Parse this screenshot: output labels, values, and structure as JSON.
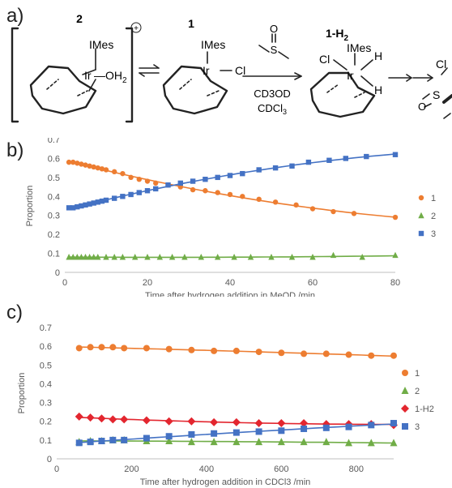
{
  "scheme": {
    "panel_label": "a)",
    "compound_2_label": "2",
    "compound_1_label": "1",
    "compound_1H2_label": "1-H",
    "compound_1H2_sub": "2",
    "charge": "+",
    "imes": "IMes",
    "ir": "Ir",
    "oh2": "—OH",
    "oh2_sub": "2",
    "cl": "Cl",
    "h": "H",
    "sulfoxide_o": "O",
    "sulfoxide_s": "S",
    "solvent_1": "CD3OD",
    "solvent_2_main": "CDCl",
    "solvent_2_sub": "3"
  },
  "chart_data": [
    {
      "panel_label": "b)",
      "type": "scatter",
      "xlabel": "Time after hydrogen addition in MeOD /min",
      "ylabel": "Proportion",
      "xlim": [
        0,
        80
      ],
      "ylim": [
        0,
        0.7
      ],
      "xticks": [
        0,
        20,
        40,
        60,
        80
      ],
      "yticks": [
        0,
        0.1,
        0.2,
        0.3,
        0.4,
        0.5,
        0.6,
        0.7
      ],
      "ytick_labels": [
        "0",
        "0.1",
        "0.2",
        "0.3",
        "0.4",
        "0.5",
        "0.6",
        "0.7"
      ],
      "grid": false,
      "legend_position": "right",
      "trendlines": true,
      "series": [
        {
          "name": "1",
          "color": "#ED7D31",
          "marker": "circle",
          "x": [
            1,
            2,
            3,
            4,
            5,
            6,
            7,
            8,
            9,
            10,
            12,
            14,
            16,
            18,
            20,
            22,
            25,
            28,
            31,
            34,
            37,
            40,
            43,
            47,
            51,
            56,
            60,
            65,
            70,
            80
          ],
          "y": [
            0.58,
            0.58,
            0.575,
            0.57,
            0.565,
            0.56,
            0.555,
            0.55,
            0.545,
            0.54,
            0.53,
            0.52,
            0.5,
            0.49,
            0.48,
            0.47,
            0.46,
            0.45,
            0.435,
            0.43,
            0.42,
            0.41,
            0.4,
            0.385,
            0.37,
            0.355,
            0.335,
            0.32,
            0.31,
            0.29
          ]
        },
        {
          "name": "2",
          "color": "#70AD47",
          "marker": "triangle",
          "x": [
            1,
            2,
            3,
            4,
            5,
            6,
            7,
            8,
            10,
            12,
            14,
            17,
            20,
            23,
            26,
            29,
            33,
            37,
            41,
            45,
            50,
            55,
            60,
            65,
            72,
            80
          ],
          "y": [
            0.08,
            0.08,
            0.08,
            0.08,
            0.08,
            0.08,
            0.08,
            0.08,
            0.08,
            0.08,
            0.08,
            0.08,
            0.08,
            0.08,
            0.08,
            0.08,
            0.08,
            0.08,
            0.08,
            0.08,
            0.08,
            0.08,
            0.08,
            0.09,
            0.08,
            0.09
          ]
        },
        {
          "name": "3",
          "color": "#4472C4",
          "marker": "square",
          "x": [
            1,
            2,
            3,
            4,
            5,
            6,
            7,
            8,
            9,
            10,
            12,
            14,
            16,
            18,
            20,
            22,
            25,
            28,
            31,
            34,
            37,
            40,
            43,
            47,
            51,
            55,
            59,
            64,
            68,
            73,
            80
          ],
          "y": [
            0.34,
            0.34,
            0.345,
            0.35,
            0.355,
            0.36,
            0.365,
            0.37,
            0.375,
            0.38,
            0.39,
            0.4,
            0.41,
            0.42,
            0.43,
            0.44,
            0.46,
            0.47,
            0.48,
            0.49,
            0.5,
            0.51,
            0.52,
            0.54,
            0.55,
            0.56,
            0.58,
            0.59,
            0.6,
            0.61,
            0.62
          ]
        }
      ]
    },
    {
      "panel_label": "c)",
      "type": "scatter",
      "xlabel": "Time after  hydrogen addition in CDCl3 /min",
      "ylabel": "Proportion",
      "xlim": [
        0,
        900
      ],
      "ylim": [
        0,
        0.7
      ],
      "xticks": [
        0,
        200,
        400,
        600,
        800
      ],
      "yticks": [
        0,
        0.1,
        0.2,
        0.3,
        0.4,
        0.5,
        0.6,
        0.7
      ],
      "ytick_labels": [
        "0",
        "0.1",
        "0.2",
        "0.3",
        "0.4",
        "0.5",
        "0.6",
        "0.7"
      ],
      "grid": false,
      "legend_position": "right",
      "trendlines": true,
      "series": [
        {
          "name": "1",
          "color": "#ED7D31",
          "marker": "circle",
          "x": [
            60,
            90,
            120,
            150,
            180,
            240,
            300,
            360,
            420,
            480,
            540,
            600,
            660,
            720,
            780,
            840,
            900
          ],
          "y": [
            0.59,
            0.595,
            0.595,
            0.595,
            0.59,
            0.59,
            0.585,
            0.58,
            0.575,
            0.575,
            0.57,
            0.565,
            0.56,
            0.56,
            0.555,
            0.55,
            0.55
          ]
        },
        {
          "name": "2",
          "color": "#70AD47",
          "marker": "triangle",
          "x": [
            60,
            90,
            120,
            150,
            180,
            240,
            300,
            360,
            420,
            480,
            540,
            600,
            660,
            720,
            780,
            840,
            900
          ],
          "y": [
            0.09,
            0.095,
            0.095,
            0.1,
            0.1,
            0.095,
            0.095,
            0.09,
            0.09,
            0.09,
            0.09,
            0.09,
            0.09,
            0.09,
            0.085,
            0.085,
            0.085
          ]
        },
        {
          "name": "1-H2",
          "color": "#E3262F",
          "marker": "diamond",
          "x": [
            60,
            90,
            120,
            150,
            180,
            240,
            300,
            360,
            420,
            480,
            540,
            600,
            660,
            720,
            780,
            840,
            900
          ],
          "y": [
            0.225,
            0.22,
            0.215,
            0.21,
            0.21,
            0.205,
            0.2,
            0.2,
            0.195,
            0.195,
            0.19,
            0.19,
            0.19,
            0.185,
            0.185,
            0.185,
            0.18
          ]
        },
        {
          "name": "3",
          "color": "#4472C4",
          "marker": "square",
          "x": [
            60,
            90,
            120,
            150,
            180,
            240,
            300,
            360,
            420,
            480,
            540,
            600,
            660,
            720,
            780,
            840,
            900
          ],
          "y": [
            0.085,
            0.09,
            0.095,
            0.1,
            0.1,
            0.11,
            0.12,
            0.13,
            0.135,
            0.14,
            0.145,
            0.15,
            0.16,
            0.165,
            0.17,
            0.18,
            0.19
          ]
        }
      ]
    }
  ]
}
